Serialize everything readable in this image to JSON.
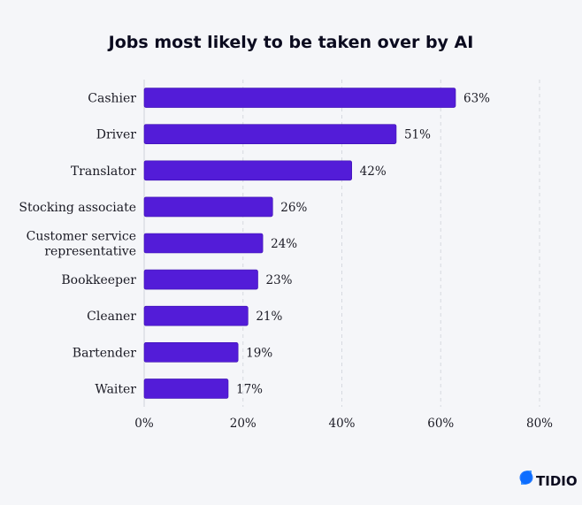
{
  "chart_data": {
    "type": "bar",
    "orientation": "horizontal",
    "title": "Jobs most likely to be taken over by AI",
    "categories": [
      [
        "Cashier"
      ],
      [
        "Driver"
      ],
      [
        "Translator"
      ],
      [
        "Stocking associate"
      ],
      [
        "Customer service",
        "representative"
      ],
      [
        "Bookkeeper"
      ],
      [
        "Cleaner"
      ],
      [
        "Bartender"
      ],
      [
        "Waiter"
      ]
    ],
    "values": [
      63,
      51,
      42,
      26,
      24,
      23,
      21,
      19,
      17
    ],
    "value_labels": [
      "63%",
      "51%",
      "42%",
      "26%",
      "24%",
      "23%",
      "21%",
      "19%",
      "17%"
    ],
    "xlim": [
      0,
      80
    ],
    "xticks": [
      0,
      20,
      40,
      60,
      80
    ],
    "xtick_labels": [
      "0%",
      "20%",
      "40%",
      "60%",
      "80%"
    ],
    "grid": "vertical dashed",
    "bar_color": "#531cd8"
  },
  "brand": {
    "name": "TIDIO",
    "colors": [
      "#0566ff",
      "#2e8cff"
    ]
  }
}
